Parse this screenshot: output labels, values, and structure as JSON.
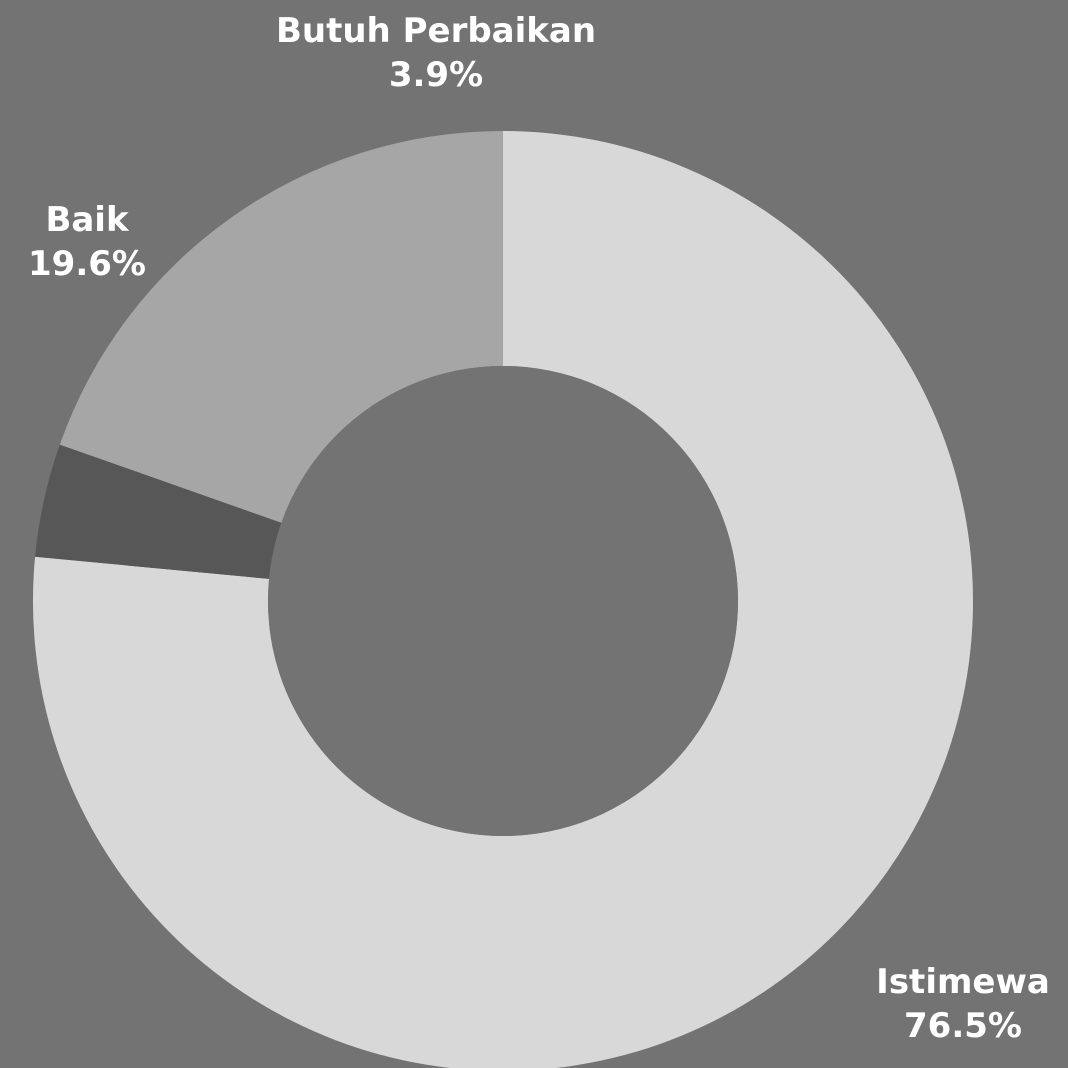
{
  "chart_data": {
    "type": "pie",
    "donut": true,
    "background_color": "#737373",
    "slices": [
      {
        "label": "Istimewa",
        "value": 76.5,
        "value_label": "76.5%",
        "color": "#d8d8d8"
      },
      {
        "label": "Butuh Perbaikan",
        "value": 3.9,
        "value_label": "3.9%",
        "color": "#575757"
      },
      {
        "label": "Baik",
        "value": 19.6,
        "value_label": "19.6%",
        "color": "#a6a6a6"
      }
    ]
  }
}
